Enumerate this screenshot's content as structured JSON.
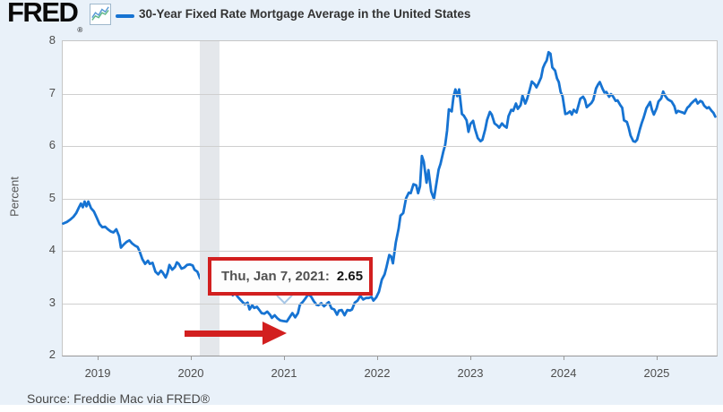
{
  "header": {
    "logo_text": "FRED",
    "logo_registered": "®",
    "legend": {
      "series_label": "30-Year Fixed Rate Mortgage Average in the United States"
    }
  },
  "tooltip": {
    "date_label": "Thu, Jan 7, 2021:",
    "value": "2.65",
    "border_color": "#d21f1f"
  },
  "annotation_arrow": {
    "color": "#d21f1f"
  },
  "source": {
    "text": "Source: Freddie Mac via FRED®"
  },
  "axis": {
    "ylabel": "Percent"
  },
  "chart_data": {
    "type": "line",
    "title": "30-Year Fixed Rate Mortgage Average in the United States",
    "ylabel": "Percent",
    "xlabel": "",
    "ylim": [
      2,
      8
    ],
    "xlim": [
      2018.615,
      2025.635
    ],
    "y_ticks": [
      8,
      7,
      6,
      5,
      4,
      3,
      2
    ],
    "x_ticks": [
      2019,
      2020,
      2021,
      2022,
      2023,
      2024,
      2025
    ],
    "grid": true,
    "legend_position": "top-left",
    "line_color": "#1673d2",
    "recession_band": {
      "start": 2020.083,
      "end": 2020.3
    },
    "highlight_point": {
      "date": "Thu, Jan 7, 2021",
      "x": 2021.02,
      "y": 2.65
    },
    "series": [
      {
        "name": "30-Year Fixed Rate Mortgage Average in the United States",
        "points": [
          [
            2018.62,
            4.52
          ],
          [
            2018.66,
            4.55
          ],
          [
            2018.7,
            4.6
          ],
          [
            2018.73,
            4.65
          ],
          [
            2018.76,
            4.72
          ],
          [
            2018.79,
            4.83
          ],
          [
            2018.81,
            4.9
          ],
          [
            2018.83,
            4.83
          ],
          [
            2018.85,
            4.94
          ],
          [
            2018.87,
            4.85
          ],
          [
            2018.89,
            4.94
          ],
          [
            2018.92,
            4.81
          ],
          [
            2018.95,
            4.75
          ],
          [
            2018.98,
            4.63
          ],
          [
            2019.01,
            4.51
          ],
          [
            2019.04,
            4.45
          ],
          [
            2019.07,
            4.46
          ],
          [
            2019.1,
            4.41
          ],
          [
            2019.13,
            4.37
          ],
          [
            2019.16,
            4.35
          ],
          [
            2019.19,
            4.41
          ],
          [
            2019.22,
            4.28
          ],
          [
            2019.24,
            4.06
          ],
          [
            2019.27,
            4.12
          ],
          [
            2019.3,
            4.17
          ],
          [
            2019.33,
            4.2
          ],
          [
            2019.36,
            4.14
          ],
          [
            2019.39,
            4.1
          ],
          [
            2019.42,
            4.07
          ],
          [
            2019.44,
            3.99
          ],
          [
            2019.47,
            3.84
          ],
          [
            2019.5,
            3.75
          ],
          [
            2019.53,
            3.81
          ],
          [
            2019.55,
            3.75
          ],
          [
            2019.58,
            3.77
          ],
          [
            2019.61,
            3.6
          ],
          [
            2019.64,
            3.55
          ],
          [
            2019.67,
            3.62
          ],
          [
            2019.69,
            3.58
          ],
          [
            2019.72,
            3.49
          ],
          [
            2019.74,
            3.58
          ],
          [
            2019.76,
            3.73
          ],
          [
            2019.79,
            3.64
          ],
          [
            2019.82,
            3.69
          ],
          [
            2019.84,
            3.78
          ],
          [
            2019.86,
            3.75
          ],
          [
            2019.89,
            3.66
          ],
          [
            2019.92,
            3.68
          ],
          [
            2019.95,
            3.73
          ],
          [
            2019.98,
            3.74
          ],
          [
            2020.01,
            3.72
          ],
          [
            2020.03,
            3.64
          ],
          [
            2020.06,
            3.6
          ],
          [
            2020.09,
            3.47
          ],
          [
            2020.12,
            3.45
          ],
          [
            2020.15,
            3.36
          ],
          [
            2020.17,
            3.29
          ],
          [
            2020.19,
            3.36
          ],
          [
            2020.21,
            3.65
          ],
          [
            2020.23,
            3.5
          ],
          [
            2020.26,
            3.33
          ],
          [
            2020.29,
            3.31
          ],
          [
            2020.33,
            3.23
          ],
          [
            2020.36,
            3.26
          ],
          [
            2020.38,
            3.28
          ],
          [
            2020.41,
            3.24
          ],
          [
            2020.44,
            3.15
          ],
          [
            2020.46,
            3.21
          ],
          [
            2020.49,
            3.13
          ],
          [
            2020.52,
            3.07
          ],
          [
            2020.54,
            3.03
          ],
          [
            2020.57,
            2.98
          ],
          [
            2020.6,
            3.01
          ],
          [
            2020.62,
            2.88
          ],
          [
            2020.65,
            2.96
          ],
          [
            2020.67,
            2.91
          ],
          [
            2020.7,
            2.93
          ],
          [
            2020.73,
            2.86
          ],
          [
            2020.75,
            2.81
          ],
          [
            2020.78,
            2.8
          ],
          [
            2020.81,
            2.84
          ],
          [
            2020.84,
            2.78
          ],
          [
            2020.86,
            2.72
          ],
          [
            2020.89,
            2.77
          ],
          [
            2020.92,
            2.71
          ],
          [
            2020.95,
            2.67
          ],
          [
            2020.98,
            2.66
          ],
          [
            2021.02,
            2.65
          ],
          [
            2021.05,
            2.73
          ],
          [
            2021.08,
            2.81
          ],
          [
            2021.11,
            2.73
          ],
          [
            2021.14,
            2.81
          ],
          [
            2021.16,
            2.97
          ],
          [
            2021.19,
            3.02
          ],
          [
            2021.22,
            3.09
          ],
          [
            2021.25,
            3.17
          ],
          [
            2021.28,
            3.13
          ],
          [
            2021.31,
            3.04
          ],
          [
            2021.34,
            2.97
          ],
          [
            2021.36,
            2.96
          ],
          [
            2021.39,
            3.0
          ],
          [
            2021.42,
            2.94
          ],
          [
            2021.45,
            2.99
          ],
          [
            2021.47,
            3.02
          ],
          [
            2021.5,
            2.9
          ],
          [
            2021.53,
            2.88
          ],
          [
            2021.56,
            2.78
          ],
          [
            2021.58,
            2.86
          ],
          [
            2021.61,
            2.87
          ],
          [
            2021.64,
            2.77
          ],
          [
            2021.67,
            2.87
          ],
          [
            2021.7,
            2.86
          ],
          [
            2021.72,
            2.88
          ],
          [
            2021.75,
            3.01
          ],
          [
            2021.78,
            3.05
          ],
          [
            2021.81,
            3.14
          ],
          [
            2021.84,
            3.07
          ],
          [
            2021.87,
            3.1
          ],
          [
            2021.9,
            3.1
          ],
          [
            2021.93,
            3.12
          ],
          [
            2021.95,
            3.05
          ],
          [
            2021.98,
            3.11
          ],
          [
            2022.01,
            3.22
          ],
          [
            2022.04,
            3.45
          ],
          [
            2022.07,
            3.55
          ],
          [
            2022.09,
            3.69
          ],
          [
            2022.12,
            3.92
          ],
          [
            2022.14,
            3.89
          ],
          [
            2022.16,
            3.76
          ],
          [
            2022.19,
            4.16
          ],
          [
            2022.22,
            4.42
          ],
          [
            2022.24,
            4.67
          ],
          [
            2022.27,
            4.72
          ],
          [
            2022.3,
            5.0
          ],
          [
            2022.33,
            5.11
          ],
          [
            2022.35,
            5.1
          ],
          [
            2022.38,
            5.27
          ],
          [
            2022.41,
            5.25
          ],
          [
            2022.43,
            5.1
          ],
          [
            2022.45,
            5.23
          ],
          [
            2022.47,
            5.81
          ],
          [
            2022.49,
            5.7
          ],
          [
            2022.52,
            5.3
          ],
          [
            2022.54,
            5.54
          ],
          [
            2022.57,
            5.13
          ],
          [
            2022.6,
            4.99
          ],
          [
            2022.62,
            5.22
          ],
          [
            2022.65,
            5.55
          ],
          [
            2022.67,
            5.66
          ],
          [
            2022.7,
            5.89
          ],
          [
            2022.72,
            6.02
          ],
          [
            2022.74,
            6.29
          ],
          [
            2022.76,
            6.7
          ],
          [
            2022.79,
            6.66
          ],
          [
            2022.81,
            6.94
          ],
          [
            2022.83,
            7.08
          ],
          [
            2022.85,
            6.95
          ],
          [
            2022.87,
            7.08
          ],
          [
            2022.9,
            6.61
          ],
          [
            2022.92,
            6.58
          ],
          [
            2022.95,
            6.49
          ],
          [
            2022.97,
            6.27
          ],
          [
            2022.99,
            6.42
          ],
          [
            2023.02,
            6.48
          ],
          [
            2023.04,
            6.33
          ],
          [
            2023.07,
            6.15
          ],
          [
            2023.1,
            6.09
          ],
          [
            2023.12,
            6.12
          ],
          [
            2023.15,
            6.32
          ],
          [
            2023.17,
            6.5
          ],
          [
            2023.2,
            6.65
          ],
          [
            2023.22,
            6.6
          ],
          [
            2023.25,
            6.43
          ],
          [
            2023.28,
            6.39
          ],
          [
            2023.3,
            6.35
          ],
          [
            2023.33,
            6.43
          ],
          [
            2023.35,
            6.39
          ],
          [
            2023.38,
            6.35
          ],
          [
            2023.4,
            6.57
          ],
          [
            2023.43,
            6.69
          ],
          [
            2023.45,
            6.67
          ],
          [
            2023.48,
            6.81
          ],
          [
            2023.5,
            6.71
          ],
          [
            2023.53,
            6.78
          ],
          [
            2023.55,
            6.96
          ],
          [
            2023.58,
            6.81
          ],
          [
            2023.6,
            6.9
          ],
          [
            2023.63,
            7.09
          ],
          [
            2023.65,
            7.23
          ],
          [
            2023.68,
            7.18
          ],
          [
            2023.7,
            7.12
          ],
          [
            2023.72,
            7.19
          ],
          [
            2023.75,
            7.31
          ],
          [
            2023.77,
            7.49
          ],
          [
            2023.79,
            7.57
          ],
          [
            2023.81,
            7.63
          ],
          [
            2023.83,
            7.79
          ],
          [
            2023.85,
            7.76
          ],
          [
            2023.87,
            7.5
          ],
          [
            2023.9,
            7.44
          ],
          [
            2023.92,
            7.29
          ],
          [
            2023.94,
            7.22
          ],
          [
            2023.96,
            7.03
          ],
          [
            2023.98,
            6.95
          ],
          [
            2024.01,
            6.61
          ],
          [
            2024.03,
            6.62
          ],
          [
            2024.06,
            6.66
          ],
          [
            2024.08,
            6.6
          ],
          [
            2024.1,
            6.69
          ],
          [
            2024.13,
            6.64
          ],
          [
            2024.15,
            6.77
          ],
          [
            2024.17,
            6.9
          ],
          [
            2024.2,
            6.94
          ],
          [
            2024.22,
            6.88
          ],
          [
            2024.24,
            6.74
          ],
          [
            2024.27,
            6.79
          ],
          [
            2024.29,
            6.82
          ],
          [
            2024.31,
            6.88
          ],
          [
            2024.34,
            7.1
          ],
          [
            2024.36,
            7.17
          ],
          [
            2024.38,
            7.22
          ],
          [
            2024.41,
            7.09
          ],
          [
            2024.43,
            7.02
          ],
          [
            2024.45,
            7.03
          ],
          [
            2024.48,
            6.94
          ],
          [
            2024.5,
            6.99
          ],
          [
            2024.52,
            6.95
          ],
          [
            2024.55,
            6.86
          ],
          [
            2024.57,
            6.87
          ],
          [
            2024.6,
            6.78
          ],
          [
            2024.62,
            6.73
          ],
          [
            2024.64,
            6.49
          ],
          [
            2024.67,
            6.46
          ],
          [
            2024.69,
            6.35
          ],
          [
            2024.71,
            6.2
          ],
          [
            2024.74,
            6.09
          ],
          [
            2024.76,
            6.08
          ],
          [
            2024.78,
            6.12
          ],
          [
            2024.81,
            6.32
          ],
          [
            2024.83,
            6.44
          ],
          [
            2024.85,
            6.54
          ],
          [
            2024.88,
            6.72
          ],
          [
            2024.9,
            6.78
          ],
          [
            2024.92,
            6.84
          ],
          [
            2024.94,
            6.69
          ],
          [
            2024.96,
            6.6
          ],
          [
            2024.99,
            6.72
          ],
          [
            2025.01,
            6.85
          ],
          [
            2025.04,
            6.91
          ],
          [
            2025.06,
            7.04
          ],
          [
            2025.08,
            6.96
          ],
          [
            2025.11,
            6.89
          ],
          [
            2025.13,
            6.87
          ],
          [
            2025.15,
            6.85
          ],
          [
            2025.18,
            6.76
          ],
          [
            2025.2,
            6.63
          ],
          [
            2025.22,
            6.67
          ],
          [
            2025.25,
            6.65
          ],
          [
            2025.27,
            6.64
          ],
          [
            2025.29,
            6.62
          ],
          [
            2025.32,
            6.73
          ],
          [
            2025.34,
            6.76
          ],
          [
            2025.36,
            6.81
          ],
          [
            2025.39,
            6.86
          ],
          [
            2025.41,
            6.89
          ],
          [
            2025.43,
            6.81
          ],
          [
            2025.46,
            6.86
          ],
          [
            2025.48,
            6.84
          ],
          [
            2025.5,
            6.77
          ],
          [
            2025.53,
            6.72
          ],
          [
            2025.55,
            6.74
          ],
          [
            2025.58,
            6.67
          ],
          [
            2025.6,
            6.63
          ],
          [
            2025.62,
            6.56
          ]
        ]
      }
    ]
  }
}
